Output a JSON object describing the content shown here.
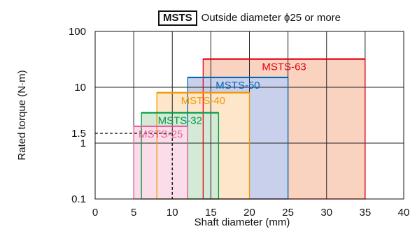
{
  "chart_data": {
    "type": "area",
    "title": {
      "badge": "MSTS",
      "text": "Outside diameter ϕ25 or more"
    },
    "xlabel": "Shaft diameter (mm)",
    "ylabel": "Rated torque (N·m)",
    "xlim": [
      0,
      40
    ],
    "ylim": [
      0.1,
      100
    ],
    "yscale": "log",
    "x_ticks": [
      0,
      5,
      10,
      15,
      20,
      25,
      30,
      35,
      40
    ],
    "y_ticks": [
      0.1,
      1,
      1.5,
      10,
      100
    ],
    "x_gridlines": [
      5,
      10,
      15,
      20,
      25,
      30,
      35
    ],
    "y_gridlines": [
      1,
      10
    ],
    "grid": true,
    "series": [
      {
        "name": "MSTS-25",
        "x_range": [
          5,
          12
        ],
        "y_range": [
          0.1,
          2
        ],
        "color": "#e8619c",
        "fill": "#fbdde9"
      },
      {
        "name": "MSTS-32",
        "x_range": [
          6,
          16
        ],
        "y_range": [
          0.1,
          3.5
        ],
        "color": "#009a44",
        "fill": "#d4ead6"
      },
      {
        "name": "MSTS-40",
        "x_range": [
          8,
          20
        ],
        "y_range": [
          0.1,
          8
        ],
        "color": "#f39800",
        "fill": "#fde6c9"
      },
      {
        "name": "MSTS-50",
        "x_range": [
          12,
          25
        ],
        "y_range": [
          0.1,
          15
        ],
        "color": "#0068b7",
        "fill": "#c8d0ec"
      },
      {
        "name": "MSTS-63",
        "x_range": [
          14,
          35
        ],
        "y_range": [
          0.1,
          32
        ],
        "color": "#e60012",
        "fill": "#f9d2c0"
      }
    ],
    "reference": {
      "x": 10,
      "y": 1.5,
      "style": "dashed"
    }
  }
}
